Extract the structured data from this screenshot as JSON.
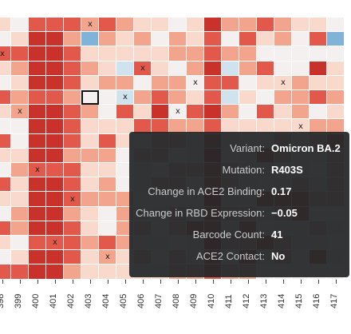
{
  "heatmap": {
    "columns": [
      "398",
      "399",
      "400",
      "401",
      "402",
      "403",
      "404",
      "405",
      "406",
      "407",
      "408",
      "409",
      "410",
      "411",
      "412",
      "413",
      "414",
      "415",
      "416",
      "417"
    ],
    "row_count": 18,
    "selected_cell": {
      "col": "403",
      "row": 5
    },
    "x_marks": [
      {
        "col": "403",
        "row": 0
      },
      {
        "col": "398",
        "row": 2
      },
      {
        "col": "406",
        "row": 3
      },
      {
        "col": "409",
        "row": 4
      },
      {
        "col": "414",
        "row": 4
      },
      {
        "col": "405",
        "row": 5
      },
      {
        "col": "399",
        "row": 6
      },
      {
        "col": "408",
        "row": 6
      },
      {
        "col": "415",
        "row": 7
      },
      {
        "col": "400",
        "row": 10
      },
      {
        "col": "402",
        "row": 12
      },
      {
        "col": "401",
        "row": 15
      },
      {
        "col": "404",
        "row": 16
      }
    ],
    "colors": {
      "strong_red": "#c8322b",
      "red": "#e2584a",
      "light_red": "#f2a58c",
      "pale": "#f8d9cc",
      "white": "#f4f0ef",
      "light_blue": "#cfe3ef",
      "blue": "#7fb4d8"
    }
  },
  "tooltip": {
    "rows": [
      {
        "key": "Variant:",
        "value": "Omicron BA.2"
      },
      {
        "key": "Mutation:",
        "value": "R403S"
      },
      {
        "key": "Change in ACE2 Binding:",
        "value": "0.17"
      },
      {
        "key": "Change in RBD Expression:",
        "value": "−0.05"
      },
      {
        "key": "Barcode Count:",
        "value": "41"
      },
      {
        "key": "ACE2 Contact:",
        "value": "No"
      }
    ]
  }
}
